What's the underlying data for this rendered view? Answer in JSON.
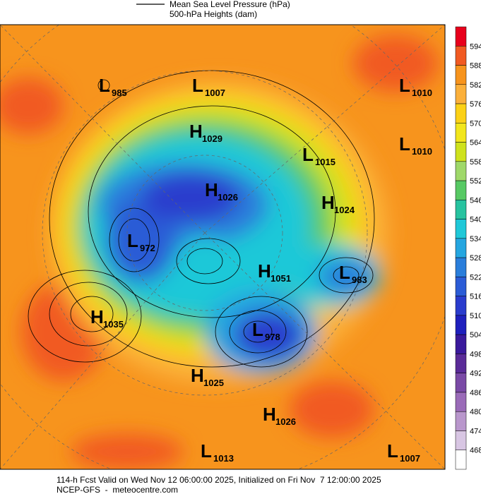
{
  "legend": {
    "items": [
      "Mean Sea Level Pressure (hPa)",
      "500-hPa Heights (dam)"
    ]
  },
  "colorbar": {
    "labels": [
      594,
      588,
      582,
      576,
      570,
      564,
      558,
      552,
      546,
      540,
      534,
      528,
      522,
      516,
      510,
      504,
      498,
      492,
      486,
      480,
      474,
      468
    ],
    "colors": [
      "#e8001c",
      "#f15a22",
      "#f7941d",
      "#fbb03b",
      "#fcd116",
      "#f2e61c",
      "#cfe21d",
      "#9fd86a",
      "#57c964",
      "#27c3a0",
      "#1fc8d8",
      "#25a6e0",
      "#2a7edb",
      "#2b5cd6",
      "#2a3ccd",
      "#1f20bd",
      "#3a1a9c",
      "#5a2b98",
      "#7a4aa6",
      "#9a6bb8",
      "#b997cc",
      "#d8c6e3",
      "#ffffff"
    ]
  },
  "centers": [
    {
      "kind": "L",
      "value": "985"
    },
    {
      "kind": "L",
      "value": "1007"
    },
    {
      "kind": "L",
      "value": "1010"
    },
    {
      "kind": "H",
      "value": "1029"
    },
    {
      "kind": "L",
      "value": "1010"
    },
    {
      "kind": "L",
      "value": "1015"
    },
    {
      "kind": "H",
      "value": "1026"
    },
    {
      "kind": "H",
      "value": "1024"
    },
    {
      "kind": "L",
      "value": "972"
    },
    {
      "kind": "H",
      "value": "1051"
    },
    {
      "kind": "L",
      "value": "983"
    },
    {
      "kind": "H",
      "value": "1035"
    },
    {
      "kind": "L",
      "value": "978"
    },
    {
      "kind": "H",
      "value": "1025"
    },
    {
      "kind": "H",
      "value": "1026"
    },
    {
      "kind": "L",
      "value": "1013"
    },
    {
      "kind": "L",
      "value": "1007"
    }
  ],
  "footer": {
    "line1": "114-h Fcst Valid on Wed Nov 12 06:00:00 2025, Initialized on Fri Nov  7 12:00:00 2025",
    "line2": "NCEP-GFS  -  meteocentre.com"
  }
}
